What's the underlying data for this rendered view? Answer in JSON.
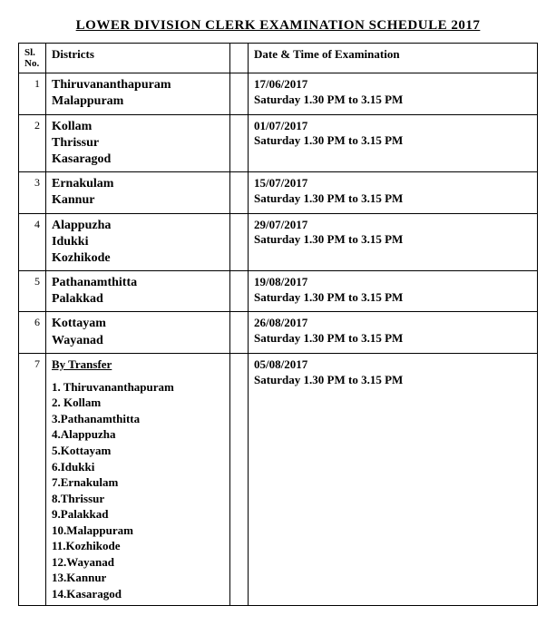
{
  "title": "LOWER  DIVISION CLERK  EXAMINATION SCHEDULE  2017",
  "headers": {
    "sl": "Sl. No.",
    "districts": "Districts",
    "datetime": "Date & Time of Examination"
  },
  "rows": [
    {
      "sl": "1",
      "districts": [
        "Thiruvananthapuram",
        "Malappuram"
      ],
      "date": "17/06/2017",
      "time": "Saturday 1.30 PM to 3.15 PM"
    },
    {
      "sl": "2",
      "districts": [
        "Kollam",
        "Thrissur",
        "Kasaragod"
      ],
      "date": "01/07/2017",
      "time": "Saturday 1.30 PM to 3.15 PM"
    },
    {
      "sl": "3",
      "districts": [
        "Ernakulam",
        "Kannur"
      ],
      "date": "15/07/2017",
      "time": "Saturday 1.30 PM to 3.15 PM"
    },
    {
      "sl": "4",
      "districts": [
        "Alappuzha",
        "Idukki",
        "Kozhikode"
      ],
      "date": "29/07/2017",
      "time": "Saturday 1.30 PM to 3.15 PM"
    },
    {
      "sl": "5",
      "districts": [
        "Pathanamthitta",
        "Palakkad"
      ],
      "date": "19/08/2017",
      "time": "Saturday 1.30 PM to 3.15 PM"
    },
    {
      "sl": "6",
      "districts": [
        "Kottayam",
        "Wayanad"
      ],
      "date": "26/08/2017",
      "time": "Saturday 1.30 PM to 3.15 PM"
    }
  ],
  "byTransfer": {
    "sl": "7",
    "heading": "By Transfer",
    "items": [
      "1. Thiruvananthapuram",
      "2. Kollam",
      "3.Pathanamthitta",
      "4.Alappuzha",
      "5.Kottayam",
      "6.Idukki",
      "7.Ernakulam",
      "8.Thrissur",
      "9.Palakkad",
      "10.Malappuram",
      "11.Kozhikode",
      "12.Wayanad",
      "13.Kannur",
      "14.Kasaragod"
    ],
    "date": "05/08/2017",
    "time": "Saturday 1.30 PM to 3.15 PM"
  }
}
